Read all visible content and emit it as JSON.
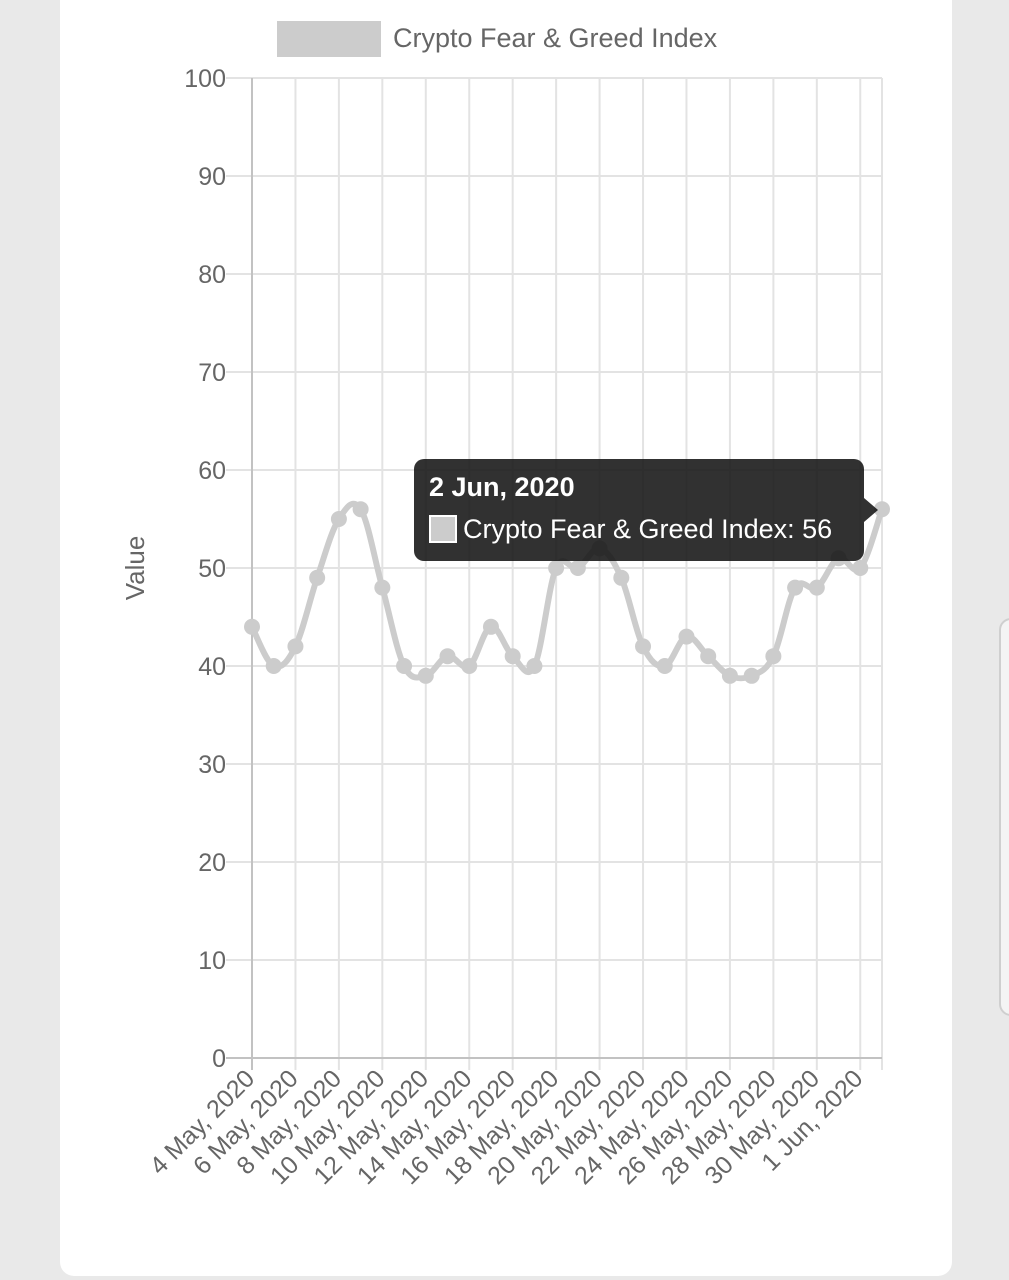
{
  "chart_data": {
    "type": "line",
    "title": "",
    "legend": {
      "label": "Crypto Fear & Greed Index",
      "position": "top",
      "swatch_color": "#cccccc"
    },
    "xlabel": "",
    "ylabel": "Value",
    "ylim": [
      0,
      100
    ],
    "y_ticks": [
      0,
      10,
      20,
      30,
      40,
      50,
      60,
      70,
      80,
      90,
      100
    ],
    "x_tick_labels": [
      "4 May, 2020",
      "6 May, 2020",
      "8 May, 2020",
      "10 May, 2020",
      "12 May, 2020",
      "14 May, 2020",
      "16 May, 2020",
      "18 May, 2020",
      "20 May, 2020",
      "22 May, 2020",
      "24 May, 2020",
      "26 May, 2020",
      "28 May, 2020",
      "30 May, 2020",
      "1 Jun, 2020"
    ],
    "x": [
      "4 May, 2020",
      "5 May, 2020",
      "6 May, 2020",
      "7 May, 2020",
      "8 May, 2020",
      "9 May, 2020",
      "10 May, 2020",
      "11 May, 2020",
      "12 May, 2020",
      "13 May, 2020",
      "14 May, 2020",
      "15 May, 2020",
      "16 May, 2020",
      "17 May, 2020",
      "18 May, 2020",
      "19 May, 2020",
      "20 May, 2020",
      "21 May, 2020",
      "22 May, 2020",
      "23 May, 2020",
      "24 May, 2020",
      "25 May, 2020",
      "26 May, 2020",
      "27 May, 2020",
      "28 May, 2020",
      "29 May, 2020",
      "30 May, 2020",
      "31 May, 2020",
      "1 Jun, 2020",
      "2 Jun, 2020"
    ],
    "series": [
      {
        "name": "Crypto Fear & Greed Index",
        "color": "#cccccc",
        "values": [
          44,
          40,
          42,
          49,
          55,
          56,
          48,
          40,
          39,
          41,
          40,
          44,
          41,
          40,
          50,
          50,
          52,
          49,
          42,
          40,
          43,
          41,
          39,
          39,
          41,
          48,
          48,
          51,
          50,
          56
        ]
      }
    ],
    "grid": true
  },
  "tooltip": {
    "title": "2 Jun, 2020",
    "label": "Crypto Fear & Greed Index: 56"
  }
}
